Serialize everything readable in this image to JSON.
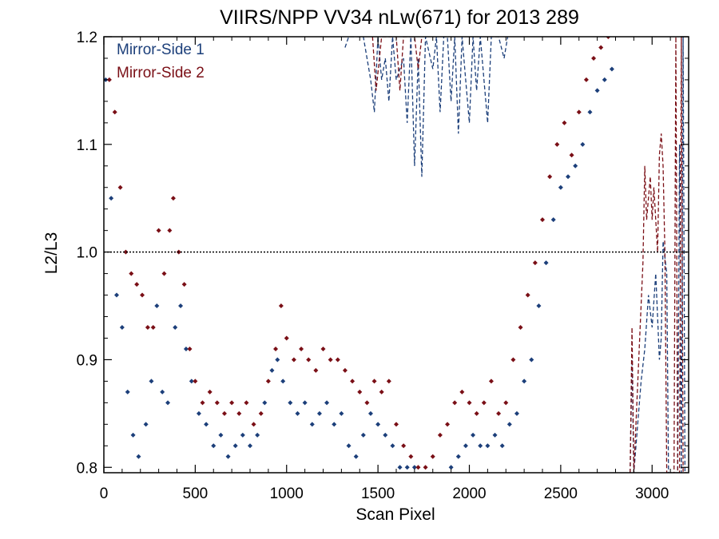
{
  "chart_data": {
    "type": "scatter",
    "title": "VIIRS/NPP VV34 nLw(671) for 2013 289",
    "xlabel": "Scan Pixel",
    "ylabel": "L2/L3",
    "xlim": [
      0,
      3200
    ],
    "ylim": [
      0.795,
      1.2
    ],
    "x_ticks": [
      0,
      500,
      1000,
      1500,
      2000,
      2500,
      3000
    ],
    "x_tick_labels": [
      "0",
      "500",
      "1000",
      "1500",
      "2000",
      "2500",
      "3000"
    ],
    "y_ticks": [
      0.8,
      0.9,
      1.0,
      1.1,
      1.2
    ],
    "y_tick_labels": [
      "0.8",
      "0.9",
      "1.0",
      "1.1",
      "1.2"
    ],
    "reference_line": {
      "y": 1.0,
      "style": "dotted",
      "color": "#000000"
    },
    "legend_position": "top-left",
    "grid": false,
    "series": [
      {
        "name": "Mirror-Side 1",
        "color": "#1c3f7a",
        "marker": "diamond",
        "points": [
          [
            10,
            1.16
          ],
          [
            40,
            1.05
          ],
          [
            70,
            0.96
          ],
          [
            100,
            0.93
          ],
          [
            130,
            0.87
          ],
          [
            160,
            0.83
          ],
          [
            190,
            0.81
          ],
          [
            230,
            0.84
          ],
          [
            260,
            0.88
          ],
          [
            290,
            0.95
          ],
          [
            320,
            0.87
          ],
          [
            350,
            0.86
          ],
          [
            390,
            0.93
          ],
          [
            420,
            0.95
          ],
          [
            450,
            0.91
          ],
          [
            480,
            0.88
          ],
          [
            520,
            0.85
          ],
          [
            560,
            0.84
          ],
          [
            600,
            0.82
          ],
          [
            640,
            0.83
          ],
          [
            680,
            0.81
          ],
          [
            720,
            0.82
          ],
          [
            760,
            0.83
          ],
          [
            800,
            0.82
          ],
          [
            840,
            0.83
          ],
          [
            880,
            0.86
          ],
          [
            920,
            0.89
          ],
          [
            950,
            0.9
          ],
          [
            980,
            0.88
          ],
          [
            1020,
            0.86
          ],
          [
            1060,
            0.85
          ],
          [
            1100,
            0.86
          ],
          [
            1140,
            0.84
          ],
          [
            1180,
            0.85
          ],
          [
            1220,
            0.86
          ],
          [
            1260,
            0.84
          ],
          [
            1300,
            0.85
          ],
          [
            1340,
            0.82
          ],
          [
            1380,
            0.81
          ],
          [
            1420,
            0.83
          ],
          [
            1460,
            0.85
          ],
          [
            1500,
            0.84
          ],
          [
            1540,
            0.83
          ],
          [
            1580,
            0.82
          ],
          [
            1620,
            0.8
          ],
          [
            1660,
            0.8
          ],
          [
            1700,
            0.8
          ],
          [
            1900,
            0.8
          ],
          [
            1940,
            0.81
          ],
          [
            1980,
            0.82
          ],
          [
            2020,
            0.83
          ],
          [
            2060,
            0.82
          ],
          [
            2100,
            0.82
          ],
          [
            2140,
            0.83
          ],
          [
            2180,
            0.82
          ],
          [
            2220,
            0.84
          ],
          [
            2260,
            0.85
          ],
          [
            2300,
            0.88
          ],
          [
            2340,
            0.9
          ],
          [
            2380,
            0.95
          ],
          [
            2420,
            0.99
          ],
          [
            2460,
            1.03
          ],
          [
            2500,
            1.06
          ],
          [
            2540,
            1.07
          ],
          [
            2580,
            1.08
          ],
          [
            2620,
            1.1
          ],
          [
            2660,
            1.13
          ],
          [
            2700,
            1.15
          ],
          [
            2740,
            1.16
          ],
          [
            2780,
            1.17
          ]
        ],
        "dashed_line": [
          [
            1320,
            1.19
          ],
          [
            1340,
            1.2
          ],
          [
            1420,
            1.2
          ],
          [
            1460,
            1.16
          ],
          [
            1480,
            1.13
          ],
          [
            1500,
            1.2
          ],
          [
            1520,
            1.16
          ],
          [
            1540,
            1.18
          ],
          [
            1560,
            1.14
          ],
          [
            1580,
            1.2
          ],
          [
            1600,
            1.16
          ],
          [
            1640,
            1.18
          ],
          [
            1660,
            1.12
          ],
          [
            1680,
            1.2
          ],
          [
            1700,
            1.08
          ],
          [
            1720,
            1.18
          ],
          [
            1740,
            1.07
          ],
          [
            1760,
            1.2
          ],
          [
            1800,
            1.17
          ],
          [
            1820,
            1.2
          ],
          [
            1840,
            1.13
          ],
          [
            1860,
            1.2
          ],
          [
            1880,
            1.2
          ],
          [
            1900,
            1.14
          ],
          [
            1920,
            1.2
          ],
          [
            1940,
            1.11
          ],
          [
            1960,
            1.2
          ],
          [
            1980,
            1.16
          ],
          [
            2000,
            1.12
          ],
          [
            2020,
            1.2
          ],
          [
            2040,
            1.15
          ],
          [
            2060,
            1.2
          ],
          [
            2080,
            1.16
          ],
          [
            2100,
            1.12
          ],
          [
            2120,
            1.2
          ],
          [
            2160,
            1.2
          ],
          [
            2190,
            1.18
          ],
          [
            2210,
            1.2
          ],
          [
            2880,
            0.79
          ],
          [
            2890,
            0.9
          ],
          [
            2900,
            0.79
          ],
          [
            2940,
            0.88
          ],
          [
            2960,
            0.91
          ],
          [
            2980,
            0.96
          ],
          [
            3000,
            0.93
          ],
          [
            3020,
            0.98
          ],
          [
            3040,
            0.9
          ],
          [
            3050,
            0.92
          ],
          [
            3060,
            1.01
          ],
          [
            3080,
            0.98
          ],
          [
            3090,
            0.79
          ],
          [
            3100,
            0.79
          ],
          [
            3120,
            0.79
          ],
          [
            3140,
            0.79
          ],
          [
            3150,
            1.1
          ],
          [
            3160,
            0.79
          ],
          [
            3170,
            1.2
          ],
          [
            3180,
            0.79
          ],
          [
            3190,
            0.79
          ]
        ]
      },
      {
        "name": "Mirror-Side 2",
        "color": "#7a0f16",
        "marker": "diamond",
        "points": [
          [
            30,
            1.16
          ],
          [
            60,
            1.13
          ],
          [
            90,
            1.06
          ],
          [
            120,
            1.0
          ],
          [
            150,
            0.98
          ],
          [
            180,
            0.97
          ],
          [
            210,
            0.96
          ],
          [
            240,
            0.93
          ],
          [
            270,
            0.93
          ],
          [
            300,
            1.02
          ],
          [
            330,
            0.98
          ],
          [
            360,
            1.02
          ],
          [
            380,
            1.05
          ],
          [
            410,
            1.0
          ],
          [
            440,
            0.97
          ],
          [
            470,
            0.91
          ],
          [
            500,
            0.88
          ],
          [
            540,
            0.86
          ],
          [
            580,
            0.87
          ],
          [
            620,
            0.86
          ],
          [
            660,
            0.85
          ],
          [
            700,
            0.86
          ],
          [
            740,
            0.85
          ],
          [
            780,
            0.86
          ],
          [
            820,
            0.84
          ],
          [
            860,
            0.85
          ],
          [
            900,
            0.88
          ],
          [
            940,
            0.91
          ],
          [
            970,
            0.95
          ],
          [
            1000,
            0.92
          ],
          [
            1040,
            0.9
          ],
          [
            1080,
            0.91
          ],
          [
            1120,
            0.9
          ],
          [
            1160,
            0.89
          ],
          [
            1200,
            0.91
          ],
          [
            1240,
            0.9
          ],
          [
            1280,
            0.9
          ],
          [
            1320,
            0.89
          ],
          [
            1360,
            0.88
          ],
          [
            1400,
            0.87
          ],
          [
            1440,
            0.86
          ],
          [
            1480,
            0.88
          ],
          [
            1520,
            0.87
          ],
          [
            1560,
            0.88
          ],
          [
            1600,
            0.84
          ],
          [
            1640,
            0.82
          ],
          [
            1680,
            0.81
          ],
          [
            1720,
            0.8
          ],
          [
            1760,
            0.8
          ],
          [
            1800,
            0.81
          ],
          [
            1840,
            0.83
          ],
          [
            1880,
            0.84
          ],
          [
            1920,
            0.86
          ],
          [
            1960,
            0.87
          ],
          [
            2000,
            0.86
          ],
          [
            2040,
            0.85
          ],
          [
            2080,
            0.86
          ],
          [
            2120,
            0.88
          ],
          [
            2160,
            0.85
          ],
          [
            2200,
            0.86
          ],
          [
            2240,
            0.9
          ],
          [
            2280,
            0.93
          ],
          [
            2320,
            0.96
          ],
          [
            2360,
            0.99
          ],
          [
            2400,
            1.03
          ],
          [
            2440,
            1.07
          ],
          [
            2480,
            1.1
          ],
          [
            2520,
            1.12
          ],
          [
            2560,
            1.09
          ],
          [
            2600,
            1.13
          ],
          [
            2640,
            1.16
          ],
          [
            2680,
            1.18
          ],
          [
            2720,
            1.19
          ],
          [
            2760,
            1.2
          ]
        ],
        "dashed_line": [
          [
            1470,
            1.2
          ],
          [
            1490,
            1.15
          ],
          [
            1520,
            1.2
          ],
          [
            1600,
            1.2
          ],
          [
            1620,
            1.15
          ],
          [
            1640,
            1.2
          ],
          [
            1700,
            1.2
          ],
          [
            1720,
            1.17
          ],
          [
            1740,
            1.2
          ],
          [
            2880,
            0.79
          ],
          [
            2890,
            0.93
          ],
          [
            2900,
            0.79
          ],
          [
            2950,
            0.99
          ],
          [
            2960,
            1.08
          ],
          [
            2970,
            1.03
          ],
          [
            2980,
            1.05
          ],
          [
            2990,
            1.07
          ],
          [
            3000,
            1.03
          ],
          [
            3010,
            1.06
          ],
          [
            3030,
            1.0
          ],
          [
            3040,
            1.09
          ],
          [
            3050,
            1.11
          ],
          [
            3060,
            1.08
          ],
          [
            3070,
            1.0
          ],
          [
            3080,
            0.79
          ],
          [
            3100,
            0.79
          ],
          [
            3120,
            0.79
          ],
          [
            3130,
            1.2
          ],
          [
            3140,
            0.79
          ],
          [
            3150,
            0.79
          ],
          [
            3160,
            1.2
          ],
          [
            3170,
            0.79
          ],
          [
            3190,
            0.79
          ]
        ]
      }
    ]
  }
}
